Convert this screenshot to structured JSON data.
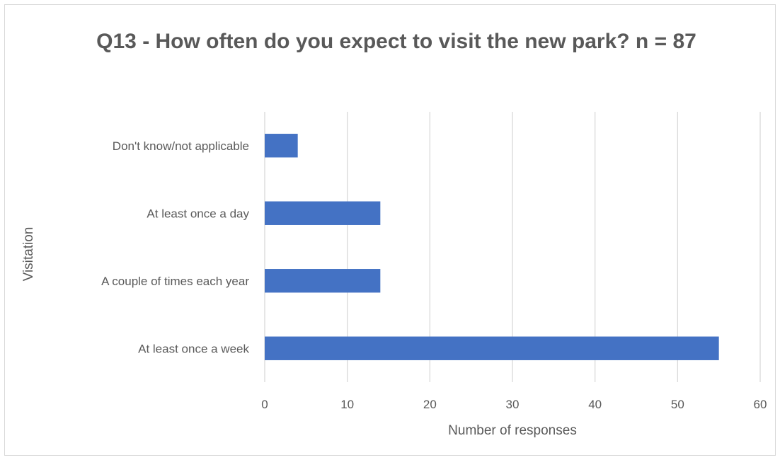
{
  "chart_data": {
    "type": "bar",
    "orientation": "horizontal",
    "title": "Q13 - How often do you expect to visit the new park? n = 87",
    "categories": [
      "At least once a week",
      "A couple of times each year",
      "At least once a day",
      "Don't know/not applicable"
    ],
    "values": [
      55,
      14,
      14,
      4
    ],
    "xlabel": "Number of responses",
    "ylabel": "Visitation",
    "xlim": [
      0,
      60
    ],
    "xticks": [
      0,
      10,
      20,
      30,
      40,
      50,
      60
    ],
    "grid": "vertical",
    "legend": "none",
    "bar_color": "#4472C4",
    "grid_color": "#d9d9d9",
    "text_color": "#595959"
  }
}
